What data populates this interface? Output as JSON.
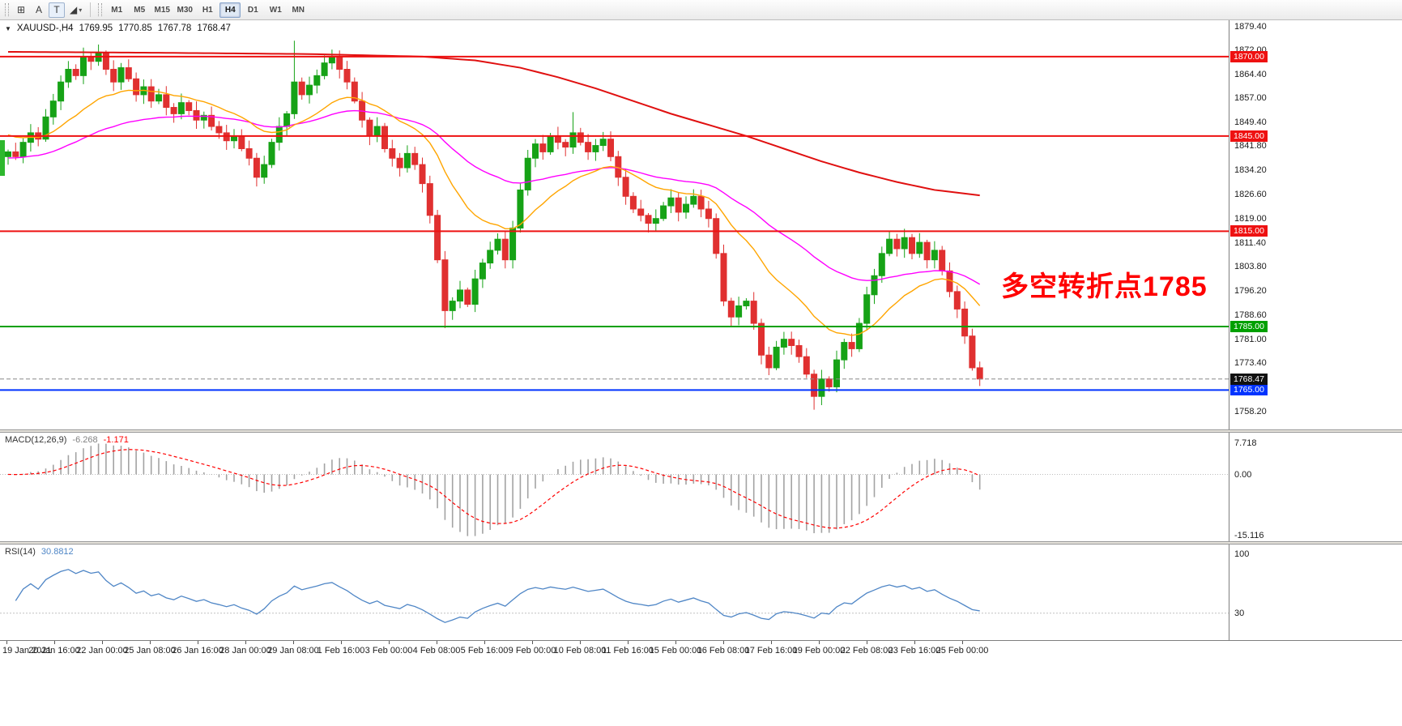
{
  "colors": {
    "up": "#16a216",
    "down": "#e03030",
    "ma_fast": "#ffa500",
    "ma_mid": "#ff00ff",
    "ma_slow": "#e01010",
    "macd_hist": "#a3a3a3",
    "macd_signal": "#ff0000",
    "rsi_line": "#4f86c6",
    "hline_red": "#ee1111",
    "hline_green": "#00a000",
    "hline_blue": "#0033ff",
    "bid_badge": "#111111",
    "annotation": "#ff0000",
    "left_marker": "#2eb82e"
  },
  "toolbar": {
    "tool_buttons": [
      {
        "name": "grid-tool-icon",
        "glyph": "⊞"
      },
      {
        "name": "text-tool-a",
        "glyph": "A"
      },
      {
        "name": "text-tool-t",
        "glyph": "T",
        "boxed": true
      },
      {
        "name": "shapes-tool",
        "glyph": "◢",
        "caret": true
      }
    ],
    "timeframes": [
      "M1",
      "M5",
      "M15",
      "M30",
      "H1",
      "H4",
      "D1",
      "W1",
      "MN"
    ],
    "active_timeframe": "H4"
  },
  "chart": {
    "symbol": "XAUUSD-,H4",
    "open": "1769.95",
    "high": "1770.85",
    "low": "1767.78",
    "close": "1768.47",
    "annotation": "多空转折点1785",
    "y_axis_labels": [
      "1879.40",
      "1872.00",
      "1864.40",
      "1857.00",
      "1849.40",
      "1841.80",
      "1834.20",
      "1826.60",
      "1819.00",
      "1811.40",
      "1803.80",
      "1796.20",
      "1788.60",
      "1781.00",
      "1773.40",
      "1765.80",
      "1758.20"
    ],
    "hlines": [
      {
        "price": 1870.0,
        "label": "1870.00",
        "color": "red"
      },
      {
        "price": 1845.0,
        "label": "1845.00",
        "color": "red"
      },
      {
        "price": 1815.0,
        "label": "1815.00",
        "color": "red"
      },
      {
        "price": 1785.0,
        "label": "1785.00",
        "color": "green"
      },
      {
        "price": 1765.0,
        "label": "1765.00",
        "color": "blue"
      }
    ],
    "bid": {
      "price": 1768.47,
      "label": "1768.47"
    }
  },
  "macd": {
    "name": "MACD(12,26,9)",
    "value_main": "-6.268",
    "value_signal": "-1.171",
    "max": 7.718,
    "min": -15.116,
    "axis": [
      {
        "v": 7.718,
        "t": "7.718"
      },
      {
        "v": 0,
        "t": "0.00"
      },
      {
        "v": -15.116,
        "t": "-15.116"
      }
    ]
  },
  "rsi": {
    "name": "RSI(14)",
    "value": "30.8812",
    "level": 30,
    "axis": [
      {
        "v": 100,
        "t": "100"
      },
      {
        "v": 30,
        "t": "30"
      }
    ]
  },
  "time_axis": [
    "19 Jan 2021",
    "20 Jan 16:00",
    "22 Jan 00:00",
    "25 Jan 08:00",
    "26 Jan 16:00",
    "28 Jan 00:00",
    "29 Jan 08:00",
    "1 Feb 16:00",
    "3 Feb 00:00",
    "4 Feb 08:00",
    "5 Feb 16:00",
    "9 Feb 00:00",
    "10 Feb 08:00",
    "11 Feb 16:00",
    "15 Feb 00:00",
    "16 Feb 08:00",
    "17 Feb 16:00",
    "19 Feb 00:00",
    "22 Feb 08:00",
    "23 Feb 16:00",
    "25 Feb 00:00"
  ],
  "chart_data": {
    "type": "candlestick",
    "symbol": "XAUUSD",
    "timeframe": "H4",
    "y_range": [
      1758.2,
      1879.4
    ],
    "closes": [
      1840.0,
      1838.5,
      1843.0,
      1846.0,
      1844.0,
      1851.0,
      1856.0,
      1862.0,
      1866.0,
      1864.0,
      1870.0,
      1868.5,
      1871.0,
      1866.0,
      1862.0,
      1866.5,
      1863.0,
      1858.0,
      1860.5,
      1856.0,
      1858.0,
      1854.0,
      1852.0,
      1855.5,
      1853.0,
      1850.0,
      1851.5,
      1848.0,
      1846.0,
      1843.5,
      1845.0,
      1841.0,
      1838.0,
      1832.0,
      1836.0,
      1843.0,
      1848.0,
      1852.0,
      1862.0,
      1858.0,
      1861.0,
      1864.0,
      1868.0,
      1870.0,
      1866.0,
      1862.0,
      1856.0,
      1850.0,
      1845.0,
      1848.0,
      1841.0,
      1838.0,
      1835.0,
      1839.5,
      1836.0,
      1830.0,
      1820.0,
      1806.0,
      1790.0,
      1793.0,
      1796.5,
      1792.0,
      1800.0,
      1805.0,
      1809.0,
      1812.5,
      1806.0,
      1816.0,
      1828.0,
      1838.0,
      1842.5,
      1840.0,
      1845.0,
      1843.0,
      1841.5,
      1846.0,
      1843.0,
      1840.0,
      1842.0,
      1844.0,
      1838.5,
      1832.0,
      1826.0,
      1822.0,
      1820.0,
      1817.5,
      1819.0,
      1823.0,
      1825.5,
      1821.0,
      1823.5,
      1826.0,
      1822.0,
      1819.0,
      1808.0,
      1793.0,
      1788.0,
      1791.5,
      1793.0,
      1786.0,
      1776.0,
      1772.0,
      1778.5,
      1781.0,
      1779.0,
      1775.5,
      1770.0,
      1763.0,
      1768.5,
      1766.0,
      1774.5,
      1780.0,
      1778.0,
      1786.0,
      1795.0,
      1801.0,
      1808.0,
      1812.5,
      1809.5,
      1813.0,
      1808.0,
      1811.5,
      1806.0,
      1809.0,
      1802.5,
      1796.0,
      1790.5,
      1782.0,
      1772.0,
      1768.47
    ],
    "wick_overrides": {
      "12": {
        "h": 1873.8
      },
      "38": {
        "h": 1875.0
      },
      "43": {
        "h": 1872.2
      },
      "58": {
        "l": 1784.5
      },
      "75": {
        "h": 1852.5
      },
      "107": {
        "l": 1758.8
      }
    },
    "ma": {
      "fast_period": 18,
      "fast_seed": 1846,
      "mid_period": 45,
      "mid_seed": 1838,
      "slow_anchors": [
        [
          0,
          1871.5
        ],
        [
          20,
          1871.2
        ],
        [
          40,
          1870.8
        ],
        [
          55,
          1870.0
        ],
        [
          62,
          1868.8
        ],
        [
          68,
          1866.5
        ],
        [
          73,
          1863.5
        ],
        [
          78,
          1860.0
        ],
        [
          83,
          1856.0
        ],
        [
          88,
          1852.0
        ],
        [
          93,
          1848.5
        ],
        [
          98,
          1845.0
        ],
        [
          103,
          1841.0
        ],
        [
          108,
          1837.0
        ],
        [
          113,
          1833.5
        ],
        [
          118,
          1830.5
        ],
        [
          123,
          1828.0
        ],
        [
          129,
          1826.3
        ]
      ]
    },
    "indicators": {
      "macd": [
        12,
        26,
        9
      ],
      "rsi": 14
    }
  }
}
